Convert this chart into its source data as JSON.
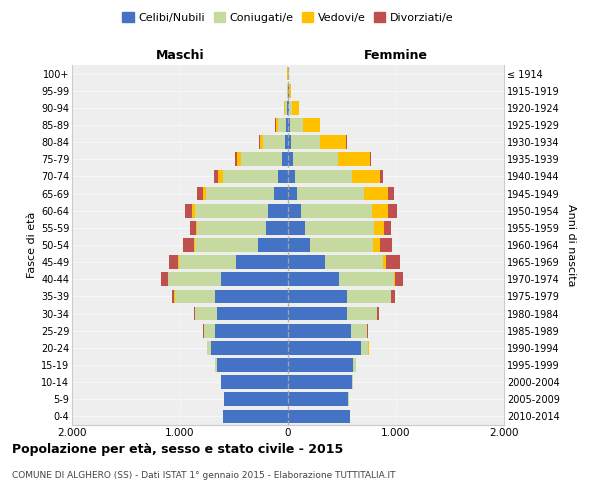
{
  "age_groups": [
    "0-4",
    "5-9",
    "10-14",
    "15-19",
    "20-24",
    "25-29",
    "30-34",
    "35-39",
    "40-44",
    "45-49",
    "50-54",
    "55-59",
    "60-64",
    "65-69",
    "70-74",
    "75-79",
    "80-84",
    "85-89",
    "90-94",
    "95-99",
    "100+"
  ],
  "birth_years": [
    "2010-2014",
    "2005-2009",
    "2000-2004",
    "1995-1999",
    "1990-1994",
    "1985-1989",
    "1980-1984",
    "1975-1979",
    "1970-1974",
    "1965-1969",
    "1960-1964",
    "1955-1959",
    "1950-1954",
    "1945-1949",
    "1940-1944",
    "1935-1939",
    "1930-1934",
    "1925-1929",
    "1920-1924",
    "1915-1919",
    "≤ 1914"
  ],
  "male": {
    "celibi": [
      600,
      590,
      620,
      660,
      710,
      680,
      660,
      680,
      620,
      480,
      280,
      200,
      185,
      130,
      90,
      55,
      30,
      15,
      8,
      4,
      2
    ],
    "coniugati": [
      2,
      2,
      5,
      15,
      40,
      100,
      200,
      370,
      490,
      530,
      580,
      640,
      680,
      630,
      510,
      380,
      200,
      80,
      20,
      5,
      2
    ],
    "vedovi": [
      0,
      0,
      0,
      0,
      1,
      1,
      1,
      2,
      3,
      5,
      10,
      15,
      20,
      30,
      50,
      40,
      30,
      20,
      8,
      3,
      1
    ],
    "divorziati": [
      0,
      0,
      0,
      1,
      2,
      5,
      10,
      25,
      60,
      85,
      100,
      55,
      70,
      50,
      35,
      20,
      5,
      2,
      1,
      0,
      0
    ]
  },
  "female": {
    "nubili": [
      570,
      560,
      590,
      600,
      680,
      580,
      550,
      550,
      470,
      340,
      200,
      155,
      120,
      85,
      65,
      45,
      25,
      15,
      10,
      5,
      2
    ],
    "coniugate": [
      2,
      3,
      8,
      25,
      65,
      150,
      270,
      400,
      510,
      540,
      590,
      640,
      660,
      620,
      530,
      420,
      270,
      120,
      30,
      8,
      2
    ],
    "vedove": [
      0,
      0,
      0,
      0,
      1,
      2,
      4,
      8,
      15,
      30,
      60,
      90,
      150,
      220,
      260,
      290,
      240,
      160,
      60,
      15,
      3
    ],
    "divorziate": [
      0,
      0,
      0,
      1,
      3,
      8,
      15,
      35,
      70,
      130,
      110,
      65,
      75,
      55,
      25,
      18,
      10,
      5,
      2,
      1,
      0
    ]
  },
  "colors": {
    "celibi": "#4472c4",
    "coniugati": "#c5d9a0",
    "vedovi": "#ffc000",
    "divorziati": "#c0504d"
  },
  "xlim": 2000,
  "title": "Popolazione per età, sesso e stato civile - 2015",
  "subtitle": "COMUNE DI ALGHERO (SS) - Dati ISTAT 1° gennaio 2015 - Elaborazione TUTTITALIA.IT",
  "xlabel_left": "Maschi",
  "xlabel_right": "Femmine",
  "ylabel_left": "Fasce di età",
  "ylabel_right": "Anni di nascita",
  "legend_labels": [
    "Celibi/Nubili",
    "Coniugati/e",
    "Vedovi/e",
    "Divorziati/e"
  ]
}
